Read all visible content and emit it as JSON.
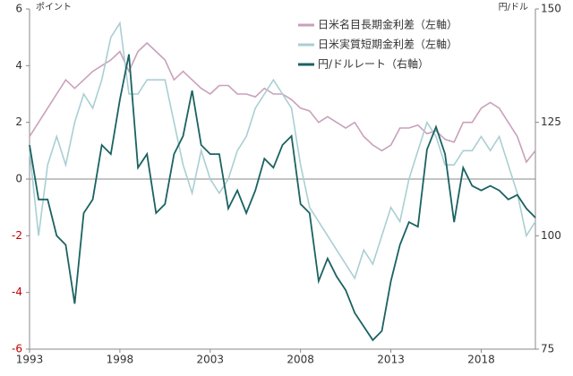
{
  "chart_data": {
    "type": "line",
    "y_label": "ポイント",
    "y2_label": "円/ドル",
    "x": [
      1993,
      1993.5,
      1994,
      1994.5,
      1995,
      1995.5,
      1996,
      1996.5,
      1997,
      1997.5,
      1998,
      1998.5,
      1999,
      1999.5,
      2000,
      2000.5,
      2001,
      2001.5,
      2002,
      2002.5,
      2003,
      2003.5,
      2004,
      2004.5,
      2005,
      2005.5,
      2006,
      2006.5,
      2007,
      2007.5,
      2008,
      2008.5,
      2009,
      2009.5,
      2010,
      2010.5,
      2011,
      2011.5,
      2012,
      2012.5,
      2013,
      2013.5,
      2014,
      2014.5,
      2015,
      2015.5,
      2016,
      2016.5,
      2017,
      2017.5,
      2018,
      2018.5,
      2019,
      2019.5,
      2020,
      2020.5,
      2021
    ],
    "xlim": [
      1993,
      2021
    ],
    "xticks": [
      1993,
      1998,
      2003,
      2008,
      2013,
      2018
    ],
    "ylim": [
      -6,
      6
    ],
    "yticks": [
      -6,
      -4,
      -2,
      0,
      2,
      4,
      6
    ],
    "y2lim": [
      75,
      150
    ],
    "y2ticks": [
      75,
      100,
      125,
      150
    ],
    "negative_tick_color": "#c00000",
    "legend": "upper right",
    "series": [
      {
        "name": "日米名目長期金利差（左軸）",
        "color": "#c9a0ba",
        "values": [
          1.5,
          2.0,
          2.5,
          3.0,
          3.5,
          3.2,
          3.5,
          3.8,
          4.0,
          4.2,
          4.5,
          3.8,
          4.5,
          4.8,
          4.5,
          4.2,
          3.5,
          3.8,
          3.5,
          3.2,
          3.0,
          3.3,
          3.3,
          3.0,
          3.0,
          2.9,
          3.2,
          3.0,
          3.0,
          2.8,
          2.5,
          2.4,
          2.0,
          2.2,
          2.0,
          1.8,
          2.0,
          1.5,
          1.2,
          1.0,
          1.2,
          1.8,
          1.8,
          1.9,
          1.6,
          1.7,
          1.4,
          1.3,
          2.0,
          2.0,
          2.5,
          2.7,
          2.5,
          2.0,
          1.5,
          0.6,
          1.0
        ]
      },
      {
        "name": "日米実質短期金利差（左軸）",
        "color": "#a9cfd3",
        "values": [
          1.0,
          -2.0,
          0.5,
          1.5,
          0.5,
          2.0,
          3.0,
          2.5,
          3.5,
          5.0,
          5.5,
          3.0,
          3.0,
          3.5,
          3.5,
          3.5,
          2.0,
          0.5,
          -0.5,
          1.0,
          0.0,
          -0.5,
          0.0,
          1.0,
          1.5,
          2.5,
          3.0,
          3.5,
          3.0,
          2.5,
          0.5,
          -1.0,
          -1.5,
          -2.0,
          -2.5,
          -3.0,
          -3.5,
          -2.5,
          -3.0,
          -2.0,
          -1.0,
          -1.5,
          0.0,
          1.0,
          2.0,
          1.5,
          0.5,
          0.5,
          1.0,
          1.0,
          1.5,
          1.0,
          1.5,
          0.5,
          -0.5,
          -2.0,
          -1.5
        ]
      },
      {
        "name": "円/ドルレート（右軸）",
        "color": "#1b6262",
        "axis": "y2",
        "values": [
          120,
          108,
          108,
          100,
          98,
          85,
          105,
          108,
          120,
          118,
          130,
          140,
          115,
          118,
          105,
          107,
          118,
          122,
          132,
          120,
          118,
          118,
          106,
          110,
          105,
          110,
          117,
          115,
          120,
          122,
          107,
          105,
          90,
          95,
          91,
          88,
          83,
          80,
          77,
          79,
          90,
          98,
          103,
          102,
          119,
          124,
          118,
          103,
          115,
          111,
          110,
          111,
          110,
          108,
          109,
          106,
          104
        ]
      }
    ]
  }
}
